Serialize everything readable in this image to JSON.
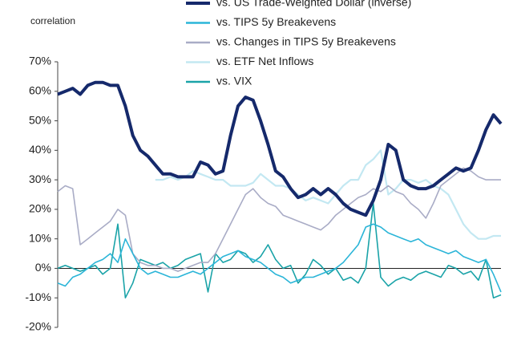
{
  "chart_data": {
    "type": "line",
    "axis_label": "correlation",
    "legend": "top-right",
    "categories": [
      null,
      null,
      null,
      null,
      null,
      null,
      null,
      null,
      null,
      null,
      null,
      null,
      null,
      null,
      null,
      null,
      null,
      null,
      null,
      null,
      null,
      null,
      null,
      null,
      null,
      null,
      null,
      null,
      null,
      null,
      null,
      null,
      null,
      null,
      null,
      null,
      null,
      null,
      null,
      null,
      null,
      null,
      null,
      null,
      null,
      null,
      null,
      null,
      null,
      null,
      null,
      null,
      null,
      null,
      null,
      null,
      null,
      null,
      null,
      null
    ],
    "ylim": [
      -20,
      70
    ],
    "yticks": [
      {
        "value": -20,
        "label": "-20%"
      },
      {
        "value": -10,
        "label": "-10%"
      },
      {
        "value": 0,
        "label": "0%"
      },
      {
        "value": 10,
        "label": "10%"
      },
      {
        "value": 20,
        "label": "20%"
      },
      {
        "value": 30,
        "label": "30%"
      },
      {
        "value": 40,
        "label": "40%"
      },
      {
        "value": 50,
        "label": "50%"
      },
      {
        "value": 60,
        "label": "60%"
      },
      {
        "value": 70,
        "label": "70%"
      }
    ],
    "series": [
      {
        "name": "vs. US Trade-Weighted Dollar (inverse)",
        "color": "#15296b",
        "values": [
          59,
          60,
          61,
          59,
          62,
          63,
          63,
          62,
          62,
          55,
          45,
          40,
          38,
          35,
          32,
          32,
          31,
          31,
          31,
          36,
          35,
          32,
          33,
          45,
          55,
          58,
          57,
          50,
          42,
          33,
          31,
          27,
          24,
          25,
          27,
          25,
          27,
          25,
          22,
          20,
          19,
          18,
          23,
          30,
          42,
          40,
          30,
          28,
          27,
          27,
          28,
          30,
          32,
          34,
          33,
          34,
          40,
          47,
          52,
          49
        ]
      },
      {
        "name": "vs. TIPS 5y Breakevens",
        "color": "#2bb5d8",
        "values": [
          -5,
          -6,
          -3,
          -2,
          0,
          2,
          3,
          5,
          2,
          10,
          5,
          0,
          -2,
          -1,
          -2,
          -3,
          -3,
          -2,
          -1,
          -2,
          0,
          2,
          4,
          5,
          6,
          4,
          3,
          2,
          0,
          -2,
          -3,
          -5,
          -4,
          -3,
          -3,
          -2,
          -1,
          0,
          2,
          5,
          8,
          14,
          15,
          14,
          12,
          11,
          10,
          9,
          10,
          8,
          7,
          6,
          5,
          6,
          4,
          3,
          2,
          3,
          -2,
          -8
        ]
      },
      {
        "name": "vs. Changes in TIPS 5y Breakevens",
        "color": "#a9acc6",
        "values": [
          26,
          28,
          27,
          8,
          10,
          12,
          14,
          16,
          20,
          18,
          5,
          2,
          1,
          1,
          0,
          0,
          -1,
          0,
          1,
          2,
          2,
          5,
          10,
          15,
          20,
          25,
          27,
          24,
          22,
          21,
          18,
          17,
          16,
          15,
          14,
          13,
          15,
          18,
          20,
          22,
          24,
          25,
          27,
          26,
          28,
          26,
          25,
          22,
          20,
          17,
          22,
          28,
          30,
          32,
          34,
          33,
          31,
          30,
          30,
          30
        ]
      },
      {
        "name": "vs. ETF Net Inflows",
        "color": "#c3e8f2",
        "values": [
          null,
          null,
          null,
          null,
          null,
          null,
          null,
          null,
          null,
          null,
          null,
          null,
          null,
          30,
          30,
          31,
          30,
          31,
          33,
          32,
          31,
          30,
          30,
          28,
          28,
          28,
          29,
          32,
          30,
          28,
          28,
          27,
          25,
          23,
          24,
          23,
          22,
          25,
          28,
          30,
          30,
          35,
          37,
          40,
          25,
          27,
          30,
          30,
          29,
          30,
          28,
          27,
          25,
          20,
          15,
          12,
          10,
          10,
          11,
          11
        ]
      },
      {
        "name": "vs. VIX",
        "color": "#1aa3a8",
        "values": [
          0,
          1,
          0,
          -1,
          0,
          1,
          -2,
          0,
          15,
          -10,
          -5,
          3,
          2,
          1,
          2,
          0,
          1,
          3,
          4,
          5,
          -8,
          5,
          2,
          3,
          6,
          5,
          2,
          4,
          8,
          3,
          0,
          1,
          -5,
          -2,
          3,
          1,
          -2,
          0,
          -4,
          -3,
          -5,
          0,
          22,
          -3,
          -6,
          -4,
          -3,
          -4,
          -2,
          -1,
          -2,
          -3,
          1,
          0,
          -2,
          -1,
          -4,
          3,
          -10,
          -9
        ]
      }
    ]
  }
}
